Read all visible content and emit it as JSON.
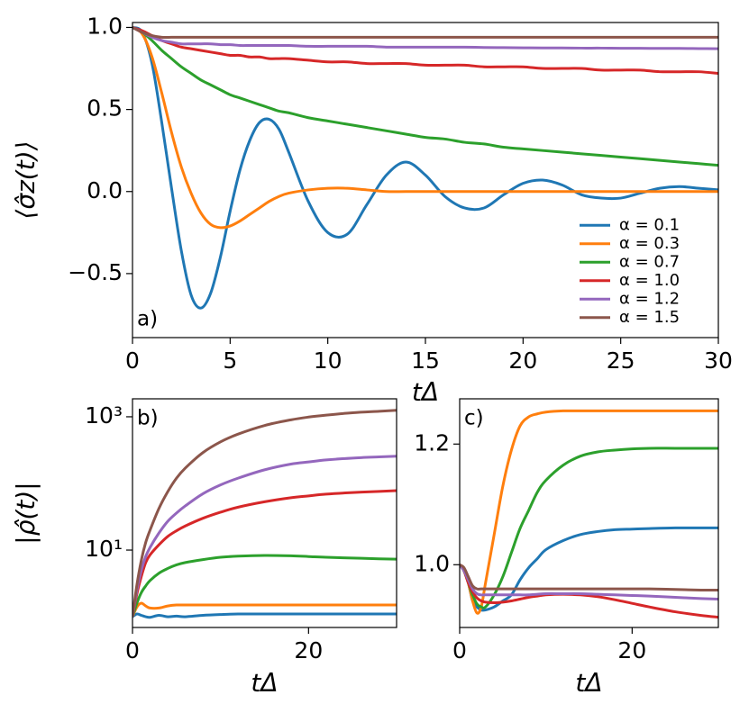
{
  "chart_data": [
    {
      "type": "line",
      "ylabel": "⟨σ̂z(t)⟩",
      "xlabel": "tΔ",
      "annotation": "a)",
      "xlim": [
        0,
        30
      ],
      "ylim": [
        -0.89,
        1.03
      ],
      "xticks": [
        0,
        5,
        10,
        15,
        20,
        25,
        30
      ],
      "yticks": [
        {
          "value": -0.5,
          "label": "−0.5"
        },
        {
          "value": 0,
          "label": "0.0"
        },
        0.5,
        {
          "value": 1,
          "label": "1.0"
        }
      ],
      "legend": "lower right",
      "x": [
        0,
        0.5,
        1,
        1.5,
        2,
        2.5,
        3,
        3.5,
        4,
        4.5,
        5,
        5.5,
        6,
        6.5,
        7,
        7.5,
        8,
        9,
        10,
        11,
        12,
        13,
        14,
        15,
        16,
        17,
        18,
        19,
        20,
        21,
        22,
        23,
        24,
        25,
        26,
        27,
        28,
        29,
        30
      ],
      "series": [
        {
          "name": "α = 0.1",
          "color": "#1f77b4",
          "values": [
            1,
            0.97,
            0.78,
            0.42,
            0.02,
            -0.36,
            -0.63,
            -0.71,
            -0.62,
            -0.4,
            -0.12,
            0.13,
            0.31,
            0.42,
            0.44,
            0.38,
            0.24,
            -0.06,
            -0.25,
            -0.26,
            -0.08,
            0.1,
            0.18,
            0.1,
            -0.03,
            -0.1,
            -0.1,
            -0.02,
            0.05,
            0.07,
            0.04,
            -0.02,
            -0.04,
            -0.04,
            -0.01,
            0.02,
            0.03,
            0.02,
            0.01
          ]
        },
        {
          "name": "α = 0.3",
          "color": "#ff7f0e",
          "values": [
            1,
            0.96,
            0.82,
            0.6,
            0.36,
            0.15,
            -0.01,
            -0.13,
            -0.2,
            -0.22,
            -0.21,
            -0.18,
            -0.14,
            -0.1,
            -0.06,
            -0.03,
            -0.01,
            0.01,
            0.02,
            0.02,
            0.01,
            0,
            0,
            0,
            0,
            0,
            0,
            0,
            0,
            0,
            0,
            0,
            0,
            0,
            0,
            0,
            0,
            0,
            0
          ]
        },
        {
          "name": "α = 0.7",
          "color": "#2ca02c",
          "values": [
            1,
            0.97,
            0.92,
            0.86,
            0.81,
            0.76,
            0.72,
            0.68,
            0.65,
            0.62,
            0.59,
            0.57,
            0.55,
            0.53,
            0.51,
            0.49,
            0.48,
            0.45,
            0.43,
            0.41,
            0.39,
            0.37,
            0.35,
            0.33,
            0.32,
            0.3,
            0.29,
            0.27,
            0.26,
            0.25,
            0.24,
            0.23,
            0.22,
            0.21,
            0.2,
            0.19,
            0.18,
            0.17,
            0.16
          ]
        },
        {
          "name": "α = 1.0",
          "color": "#d62728",
          "values": [
            1,
            0.98,
            0.95,
            0.92,
            0.9,
            0.88,
            0.87,
            0.86,
            0.85,
            0.84,
            0.83,
            0.83,
            0.82,
            0.82,
            0.81,
            0.81,
            0.81,
            0.8,
            0.79,
            0.79,
            0.78,
            0.78,
            0.78,
            0.77,
            0.77,
            0.77,
            0.76,
            0.76,
            0.76,
            0.75,
            0.75,
            0.75,
            0.74,
            0.74,
            0.74,
            0.73,
            0.73,
            0.73,
            0.72
          ]
        },
        {
          "name": "α = 1.2",
          "color": "#9467bd",
          "values": [
            1,
            0.97,
            0.94,
            0.92,
            0.91,
            0.9,
            0.9,
            0.9,
            0.9,
            0.895,
            0.895,
            0.89,
            0.89,
            0.89,
            0.89,
            0.89,
            0.89,
            0.885,
            0.885,
            0.885,
            0.885,
            0.88,
            0.88,
            0.88,
            0.88,
            0.88,
            0.878,
            0.877,
            0.876,
            0.875,
            0.875,
            0.874,
            0.874,
            0.873,
            0.873,
            0.872,
            0.872,
            0.871,
            0.87
          ]
        },
        {
          "name": "α = 1.5",
          "color": "#8c564b",
          "values": [
            1,
            0.97,
            0.95,
            0.94,
            0.94,
            0.94,
            0.94,
            0.94,
            0.94,
            0.94,
            0.94,
            0.94,
            0.94,
            0.94,
            0.94,
            0.94,
            0.94,
            0.94,
            0.94,
            0.94,
            0.94,
            0.94,
            0.94,
            0.94,
            0.94,
            0.94,
            0.94,
            0.94,
            0.94,
            0.94,
            0.94,
            0.94,
            0.94,
            0.94,
            0.94,
            0.94,
            0.94,
            0.94,
            0.94
          ]
        }
      ]
    },
    {
      "type": "line",
      "ylabel": "|ρ̂(t)|",
      "xlabel": "tΔ",
      "annotation": "b)",
      "yscale": "log",
      "xlim": [
        0,
        30
      ],
      "ylim": [
        0.69,
        1860
      ],
      "xticks": [
        0,
        20
      ],
      "yticks": [
        {
          "value": 10,
          "label": "10¹"
        },
        {
          "value": 1000,
          "label": "10³"
        }
      ],
      "x": [
        0,
        0.5,
        1,
        1.5,
        2,
        3,
        4,
        5,
        6,
        8,
        10,
        12,
        15,
        18,
        20,
        22,
        25,
        28,
        30
      ],
      "series": [
        {
          "color": "#1f77b4",
          "values": [
            1,
            1.1,
            1.05,
            1,
            0.98,
            1.05,
            1,
            1.02,
            1,
            1.05,
            1.08,
            1.1,
            1.1,
            1.1,
            1.1,
            1.1,
            1.1,
            1.1,
            1.1
          ]
        },
        {
          "color": "#ff7f0e",
          "values": [
            1,
            1.4,
            1.6,
            1.45,
            1.35,
            1.35,
            1.45,
            1.5,
            1.5,
            1.5,
            1.5,
            1.5,
            1.5,
            1.5,
            1.5,
            1.5,
            1.5,
            1.5,
            1.5
          ]
        },
        {
          "color": "#2ca02c",
          "values": [
            1,
            1.6,
            2.3,
            2.9,
            3.5,
            4.5,
            5.3,
            6,
            6.5,
            7.2,
            7.8,
            8.1,
            8.3,
            8.2,
            8,
            7.8,
            7.6,
            7.4,
            7.3
          ]
        },
        {
          "color": "#d62728",
          "values": [
            1,
            2.2,
            4,
            6.5,
            8.5,
            12,
            16,
            19.5,
            23,
            30,
            37,
            44,
            53,
            61,
            65,
            69,
            73,
            76,
            78
          ]
        },
        {
          "color": "#9467bd",
          "values": [
            1,
            2.5,
            5,
            8,
            11,
            18,
            27,
            36,
            46,
            70,
            95,
            120,
            160,
            195,
            210,
            225,
            240,
            250,
            256
          ]
        },
        {
          "color": "#8c564b",
          "values": [
            1,
            3,
            7,
            13,
            20,
            42,
            75,
            120,
            170,
            290,
            420,
            550,
            740,
            900,
            990,
            1060,
            1150,
            1210,
            1250
          ]
        }
      ]
    },
    {
      "type": "line",
      "xlabel": "tΔ",
      "annotation": "c)",
      "xlim": [
        0,
        30
      ],
      "ylim": [
        0.896,
        1.275
      ],
      "xticks": [
        0,
        20
      ],
      "yticks": [
        {
          "value": 1,
          "label": "1.0"
        },
        1.2
      ],
      "x": [
        0,
        0.5,
        1,
        1.5,
        2,
        2.5,
        3,
        4,
        5,
        6,
        7,
        8,
        9,
        10,
        12,
        14,
        16,
        18,
        20,
        22,
        25,
        28,
        30
      ],
      "series": [
        {
          "color": "#1f77b4",
          "values": [
            1,
            0.99,
            0.97,
            0.94,
            0.93,
            0.925,
            0.925,
            0.93,
            0.94,
            0.95,
            0.975,
            0.995,
            1.01,
            1.025,
            1.04,
            1.05,
            1.055,
            1.058,
            1.059,
            1.06,
            1.061,
            1.061,
            1.061
          ]
        },
        {
          "color": "#ff7f0e",
          "values": [
            1,
            0.99,
            0.97,
            0.94,
            0.92,
            0.93,
            0.97,
            1.05,
            1.13,
            1.19,
            1.23,
            1.245,
            1.25,
            1.253,
            1.255,
            1.255,
            1.255,
            1.255,
            1.255,
            1.255,
            1.255,
            1.255,
            1.255
          ]
        },
        {
          "color": "#2ca02c",
          "values": [
            1,
            0.99,
            0.97,
            0.95,
            0.935,
            0.93,
            0.93,
            0.95,
            0.98,
            1.02,
            1.06,
            1.09,
            1.12,
            1.14,
            1.165,
            1.18,
            1.187,
            1.19,
            1.192,
            1.193,
            1.193,
            1.193,
            1.193
          ]
        },
        {
          "color": "#d62728",
          "values": [
            1,
            0.99,
            0.97,
            0.955,
            0.945,
            0.94,
            0.938,
            0.937,
            0.938,
            0.94,
            0.943,
            0.946,
            0.948,
            0.95,
            0.951,
            0.95,
            0.947,
            0.942,
            0.936,
            0.93,
            0.922,
            0.916,
            0.913
          ]
        },
        {
          "color": "#9467bd",
          "values": [
            1,
            0.99,
            0.975,
            0.96,
            0.952,
            0.95,
            0.95,
            0.95,
            0.95,
            0.95,
            0.95,
            0.95,
            0.951,
            0.952,
            0.952,
            0.952,
            0.951,
            0.95,
            0.949,
            0.948,
            0.946,
            0.944,
            0.943
          ]
        },
        {
          "color": "#8c564b",
          "values": [
            1,
            0.995,
            0.98,
            0.965,
            0.96,
            0.96,
            0.96,
            0.96,
            0.96,
            0.96,
            0.96,
            0.96,
            0.96,
            0.96,
            0.96,
            0.96,
            0.96,
            0.96,
            0.96,
            0.96,
            0.959,
            0.958,
            0.958
          ]
        }
      ]
    }
  ]
}
